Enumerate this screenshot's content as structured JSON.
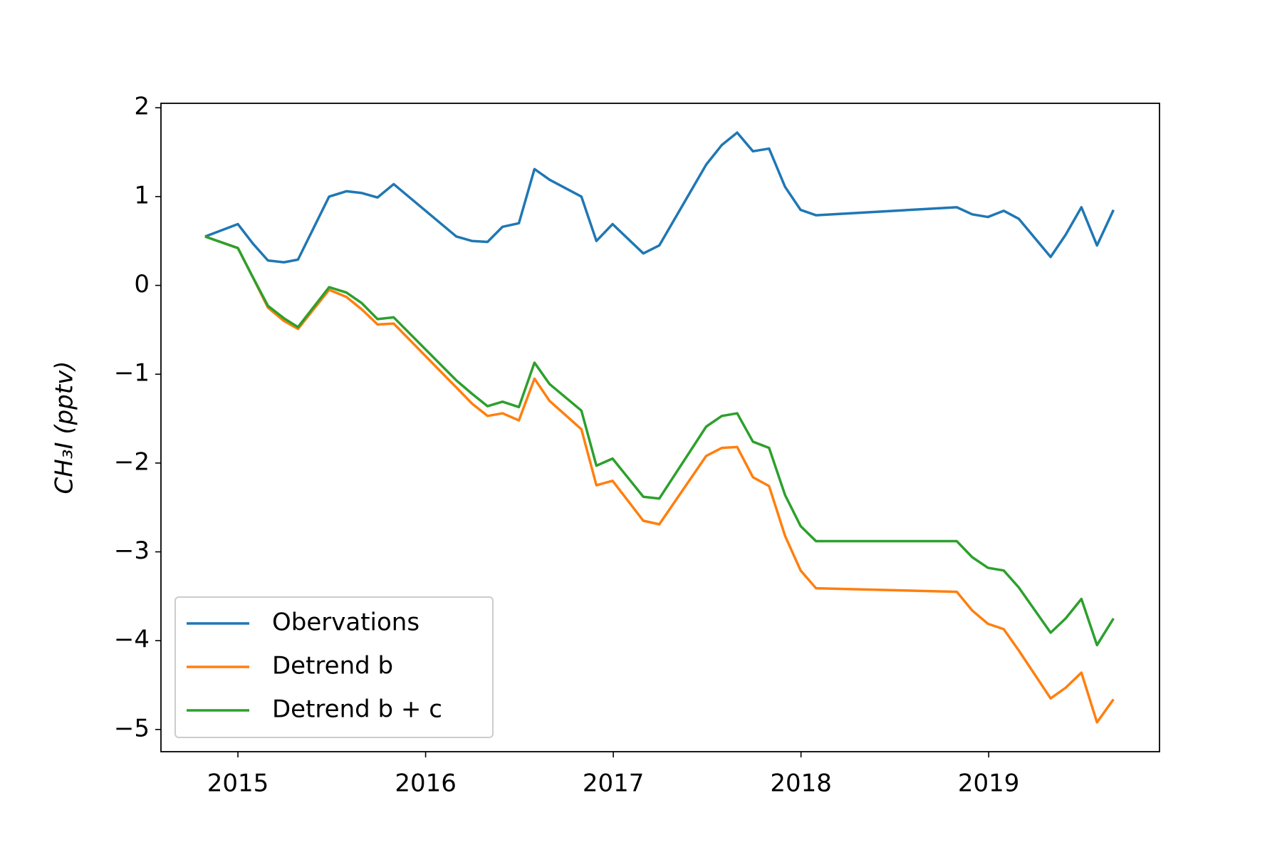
{
  "chart_data": {
    "type": "line",
    "y_label": "CH₃I (pptv)",
    "x": [
      2014.825,
      2015.0,
      2015.08,
      2015.16,
      2015.245,
      2015.32,
      2015.486,
      2015.578,
      2015.66,
      2015.744,
      2015.83,
      2016.164,
      2016.247,
      2016.33,
      2016.41,
      2016.497,
      2016.58,
      2016.66,
      2016.83,
      2016.91,
      2016.996,
      2017.16,
      2017.245,
      2017.495,
      2017.578,
      2017.66,
      2017.744,
      2017.83,
      2017.915,
      2017.998,
      2018.08,
      2018.83,
      2018.912,
      2018.996,
      2019.08,
      2019.16,
      2019.33,
      2019.41,
      2019.494,
      2019.577,
      2019.665
    ],
    "series": [
      {
        "name": "Obervations",
        "color": "#1f77b4",
        "values": [
          0.55,
          0.69,
          0.47,
          0.28,
          0.26,
          0.29,
          1.0,
          1.06,
          1.04,
          0.99,
          1.14,
          0.55,
          0.5,
          0.49,
          0.66,
          0.7,
          1.31,
          1.19,
          1.0,
          0.5,
          0.69,
          0.36,
          0.45,
          1.36,
          1.58,
          1.72,
          1.51,
          1.54,
          1.11,
          0.85,
          0.79,
          0.88,
          0.8,
          0.77,
          0.84,
          0.75,
          0.32,
          0.57,
          0.88,
          0.45,
          0.85
        ]
      },
      {
        "name": "Detrend b",
        "color": "#ff7f0e",
        "values": [
          0.55,
          0.42,
          0.09,
          -0.25,
          -0.4,
          -0.49,
          -0.05,
          -0.13,
          -0.27,
          -0.44,
          -0.43,
          -1.15,
          -1.33,
          -1.47,
          -1.44,
          -1.52,
          -1.05,
          -1.3,
          -1.62,
          -2.25,
          -2.2,
          -2.65,
          -2.69,
          -1.92,
          -1.83,
          -1.82,
          -2.16,
          -2.26,
          -2.82,
          -3.21,
          -3.41,
          -3.45,
          -3.66,
          -3.81,
          -3.87,
          -4.11,
          -4.65,
          -4.53,
          -4.36,
          -4.92,
          -4.66
        ]
      },
      {
        "name": "Detrend b + c",
        "color": "#2ca02c",
        "values": [
          0.55,
          0.42,
          0.09,
          -0.23,
          -0.37,
          -0.47,
          -0.02,
          -0.08,
          -0.2,
          -0.38,
          -0.36,
          -1.07,
          -1.22,
          -1.36,
          -1.31,
          -1.37,
          -0.87,
          -1.11,
          -1.41,
          -2.03,
          -1.95,
          -2.38,
          -2.4,
          -1.59,
          -1.47,
          -1.44,
          -1.76,
          -1.83,
          -2.36,
          -2.71,
          -2.88,
          -2.88,
          -3.06,
          -3.18,
          -3.21,
          -3.4,
          -3.91,
          -3.75,
          -3.53,
          -4.05,
          -3.75
        ]
      }
    ],
    "xlim": [
      2014.59,
      2019.91
    ],
    "xticks": [
      2015,
      2016,
      2017,
      2018,
      2019
    ],
    "ylim": [
      -5.25,
      2.05
    ],
    "yticks": [
      2,
      1,
      0,
      {
        "value": -1,
        "label": "−1"
      },
      {
        "value": -2,
        "label": "−2"
      },
      {
        "value": -3,
        "label": "−3"
      },
      {
        "value": -4,
        "label": "−4"
      },
      {
        "value": -5,
        "label": "−5"
      }
    ],
    "legend": "lower left",
    "grid": false
  }
}
